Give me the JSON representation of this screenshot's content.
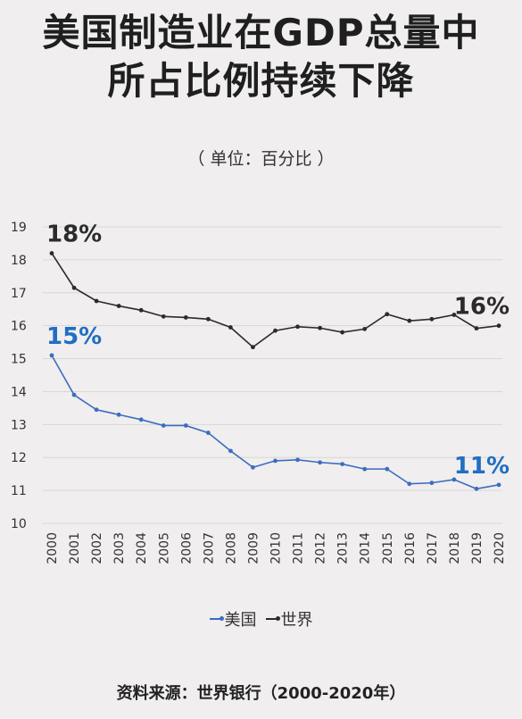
{
  "title_line1": "美国制造业在GDP总量中",
  "title_line2": "所占比例持续下降",
  "subtitle": "（ 单位：百分比 ）",
  "source": "资料来源：世界银行（2000-2020年）",
  "colors": {
    "usa": "#3d6cc0",
    "world": "#2b2b2b",
    "usa_label": "#1f6fc4",
    "grid": "#d9d6d6"
  },
  "chart_data": {
    "type": "line",
    "x": [
      "2000",
      "2001",
      "2002",
      "2003",
      "2004",
      "2005",
      "2006",
      "2007",
      "2008",
      "2009",
      "2010",
      "2011",
      "2012",
      "2013",
      "2014",
      "2015",
      "2016",
      "2017",
      "2018",
      "2019",
      "2020"
    ],
    "ylim": [
      10,
      19
    ],
    "yticks": [
      "10",
      "11",
      "12",
      "13",
      "14",
      "15",
      "16",
      "17",
      "18",
      "19"
    ],
    "grid": true,
    "legend_position": "bottom",
    "series": [
      {
        "name": "美国",
        "color": "#3d6cc0",
        "values": [
          15.1,
          13.9,
          13.45,
          13.3,
          13.15,
          12.97,
          12.97,
          12.75,
          12.2,
          11.7,
          11.9,
          11.93,
          11.85,
          11.8,
          11.65,
          11.65,
          11.2,
          11.23,
          11.33,
          11.05,
          11.17
        ]
      },
      {
        "name": "世界",
        "color": "#2b2b2b",
        "values": [
          18.2,
          17.15,
          16.75,
          16.6,
          16.47,
          16.28,
          16.25,
          16.2,
          15.95,
          15.35,
          15.85,
          15.97,
          15.93,
          15.8,
          15.9,
          16.35,
          16.15,
          16.2,
          16.33,
          15.92,
          16.0
        ]
      }
    ],
    "annotations": [
      {
        "text": "18%",
        "series": "世界",
        "index": 0
      },
      {
        "text": "16%",
        "series": "世界",
        "index": 20
      },
      {
        "text": "15%",
        "series": "美国",
        "index": 0
      },
      {
        "text": "11%",
        "series": "美国",
        "index": 20
      }
    ]
  }
}
